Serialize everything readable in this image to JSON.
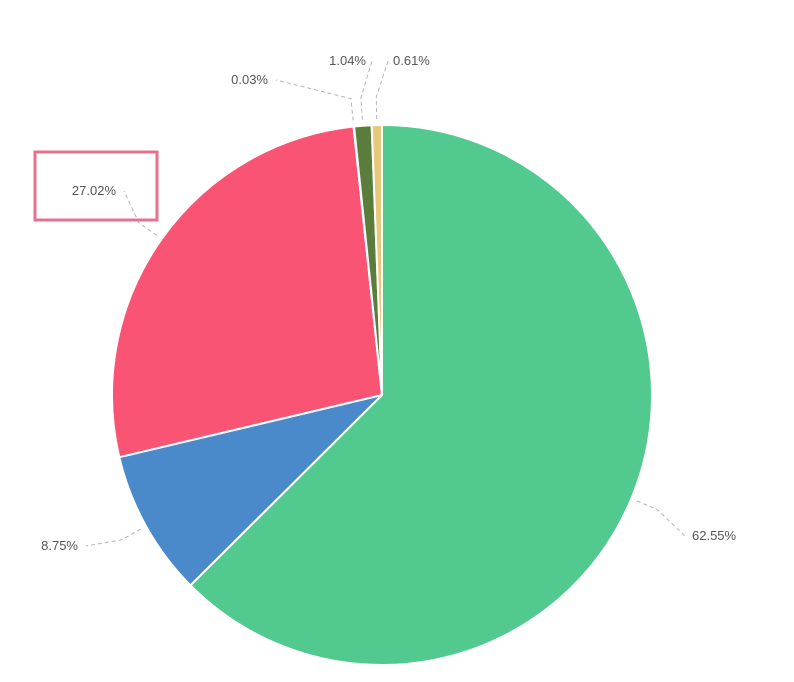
{
  "chart_data": {
    "type": "pie",
    "title": "",
    "slices": [
      {
        "label": "62.55%",
        "value": 62.55,
        "color": "#52c98f"
      },
      {
        "label": "8.75%",
        "value": 8.75,
        "color": "#4a8acb"
      },
      {
        "label": "27.02%",
        "value": 27.02,
        "color": "#fa5474"
      },
      {
        "label": "0.03%",
        "value": 0.03,
        "color": "#f0c8d2"
      },
      {
        "label": "1.04%",
        "value": 1.04,
        "color": "#5a7d3c"
      },
      {
        "label": "0.61%",
        "value": 0.61,
        "color": "#e6c97a"
      }
    ],
    "start": "12 o'clock",
    "direction": "clockwise",
    "legend": "none",
    "highlighted_label": "27.02%",
    "highlight_color": "#e8708f"
  }
}
